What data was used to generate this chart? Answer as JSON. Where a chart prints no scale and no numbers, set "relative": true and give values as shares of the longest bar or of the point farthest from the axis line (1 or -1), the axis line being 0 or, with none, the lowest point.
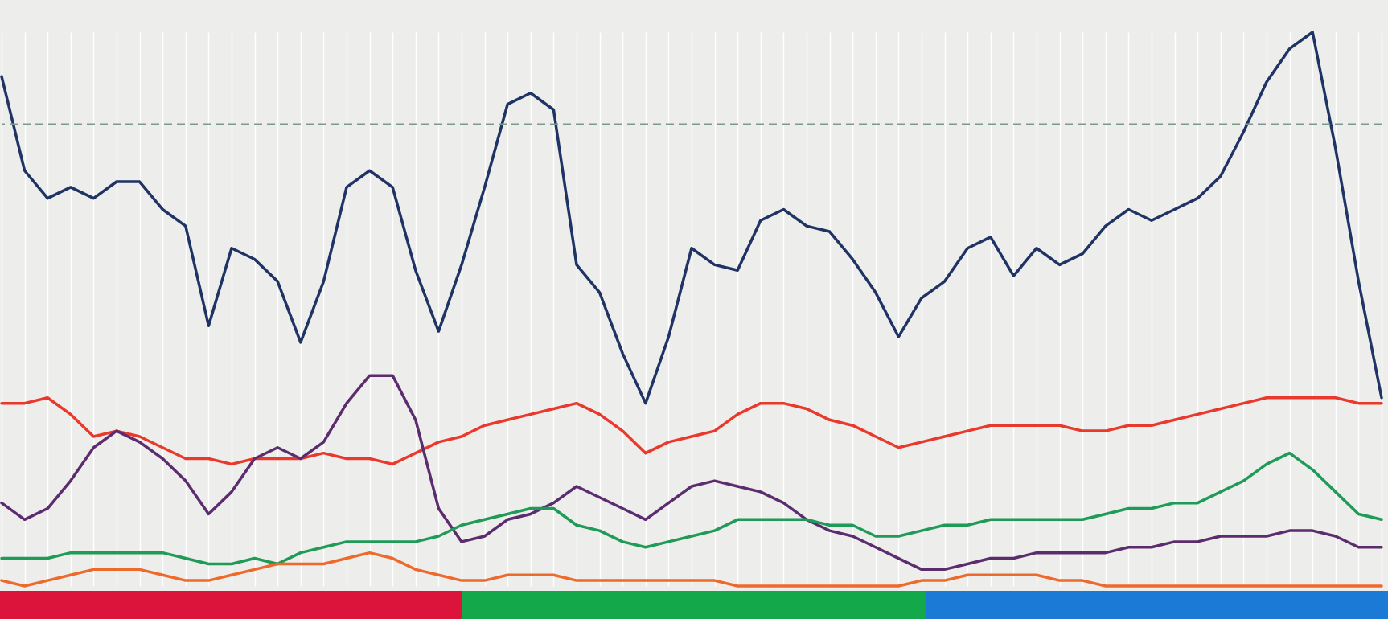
{
  "chart_data": {
    "type": "line",
    "relative": true,
    "grid": "x",
    "line_style": "solid",
    "marker": "none",
    "categories": [
      null,
      null,
      null,
      null,
      null,
      null,
      null,
      null,
      null,
      null,
      null,
      null,
      null,
      null,
      null,
      null,
      null,
      null,
      null,
      null,
      null,
      null,
      null,
      null,
      null,
      null,
      null,
      null,
      null,
      null,
      null,
      null,
      null,
      null,
      null,
      null,
      null,
      null,
      null,
      null,
      null,
      null,
      null,
      null,
      null,
      null,
      null,
      null,
      null,
      null,
      null,
      null,
      null,
      null,
      null,
      null,
      null,
      null,
      null,
      null,
      null
    ],
    "ref_lines": [
      {
        "axis": "y",
        "value": 0.834,
        "color": "#7a9a90",
        "line_style": "dashed"
      }
    ],
    "series": [
      {
        "color": "#1f3464",
        "values": [
          0.92,
          0.75,
          0.7,
          0.72,
          0.7,
          0.73,
          0.73,
          0.68,
          0.65,
          0.47,
          0.61,
          0.59,
          0.55,
          0.44,
          0.55,
          0.72,
          0.75,
          0.72,
          0.57,
          0.46,
          0.58,
          0.72,
          0.87,
          0.89,
          0.86,
          0.58,
          0.53,
          0.42,
          0.33,
          0.45,
          0.61,
          0.58,
          0.57,
          0.66,
          0.68,
          0.65,
          0.64,
          0.59,
          0.53,
          0.45,
          0.52,
          0.55,
          0.61,
          0.63,
          0.56,
          0.61,
          0.58,
          0.6,
          0.65,
          0.68,
          0.66,
          0.68,
          0.7,
          0.74,
          0.82,
          0.91,
          0.97,
          1,
          0.79,
          0.55,
          0.34
        ]
      },
      {
        "color": "#e8392c",
        "values": [
          0.33,
          0.33,
          0.34,
          0.31,
          0.27,
          0.28,
          0.27,
          0.25,
          0.23,
          0.23,
          0.22,
          0.23,
          0.23,
          0.23,
          0.24,
          0.23,
          0.23,
          0.22,
          0.24,
          0.26,
          0.27,
          0.29,
          0.3,
          0.31,
          0.32,
          0.33,
          0.31,
          0.28,
          0.24,
          0.26,
          0.27,
          0.28,
          0.31,
          0.33,
          0.33,
          0.32,
          0.3,
          0.29,
          0.27,
          0.25,
          0.26,
          0.27,
          0.28,
          0.29,
          0.29,
          0.29,
          0.29,
          0.28,
          0.28,
          0.29,
          0.29,
          0.3,
          0.31,
          0.32,
          0.33,
          0.34,
          0.34,
          0.34,
          0.34,
          0.33,
          0.33
        ]
      },
      {
        "color": "#5b2d6e",
        "values": [
          0.15,
          0.12,
          0.14,
          0.19,
          0.25,
          0.28,
          0.26,
          0.23,
          0.19,
          0.13,
          0.17,
          0.23,
          0.25,
          0.23,
          0.26,
          0.33,
          0.38,
          0.38,
          0.3,
          0.14,
          0.08,
          0.09,
          0.12,
          0.13,
          0.15,
          0.18,
          0.16,
          0.14,
          0.12,
          0.15,
          0.18,
          0.19,
          0.18,
          0.17,
          0.15,
          0.12,
          0.1,
          0.09,
          0.07,
          0.05,
          0.03,
          0.03,
          0.04,
          0.05,
          0.05,
          0.06,
          0.06,
          0.06,
          0.06,
          0.07,
          0.07,
          0.08,
          0.08,
          0.09,
          0.09,
          0.09,
          0.1,
          0.1,
          0.09,
          0.07,
          0.07
        ]
      },
      {
        "color": "#1f9a57",
        "values": [
          0.05,
          0.05,
          0.05,
          0.06,
          0.06,
          0.06,
          0.06,
          0.06,
          0.05,
          0.04,
          0.04,
          0.05,
          0.04,
          0.06,
          0.07,
          0.08,
          0.08,
          0.08,
          0.08,
          0.09,
          0.11,
          0.12,
          0.13,
          0.14,
          0.14,
          0.11,
          0.1,
          0.08,
          0.07,
          0.08,
          0.09,
          0.1,
          0.12,
          0.12,
          0.12,
          0.12,
          0.11,
          0.11,
          0.09,
          0.09,
          0.1,
          0.11,
          0.11,
          0.12,
          0.12,
          0.12,
          0.12,
          0.12,
          0.13,
          0.14,
          0.14,
          0.15,
          0.15,
          0.17,
          0.19,
          0.22,
          0.24,
          0.21,
          0.17,
          0.13,
          0.12
        ]
      },
      {
        "color": "#ee6a2c",
        "values": [
          0.01,
          0,
          0.01,
          0.02,
          0.03,
          0.03,
          0.03,
          0.02,
          0.01,
          0.01,
          0.02,
          0.03,
          0.04,
          0.04,
          0.04,
          0.05,
          0.06,
          0.05,
          0.03,
          0.02,
          0.01,
          0.01,
          0.02,
          0.02,
          0.02,
          0.01,
          0.01,
          0.01,
          0.01,
          0.01,
          0.01,
          0.01,
          0,
          0,
          0,
          0,
          0,
          0,
          0,
          0,
          0.01,
          0.01,
          0.02,
          0.02,
          0.02,
          0.02,
          0.01,
          0.01,
          0,
          0,
          0,
          0,
          0,
          0,
          0,
          0,
          0,
          0,
          0,
          0,
          0
        ]
      }
    ]
  }
}
